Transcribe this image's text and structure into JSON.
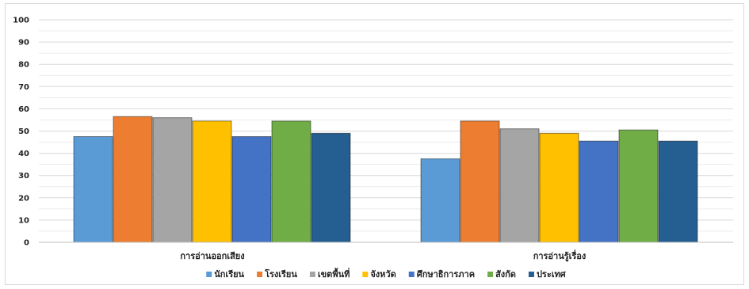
{
  "chart_data": {
    "type": "bar",
    "title": "",
    "xlabel": "",
    "ylabel": "",
    "ylim": [
      0,
      100
    ],
    "yticks": [
      0,
      10,
      20,
      30,
      40,
      50,
      60,
      70,
      80,
      90,
      100
    ],
    "grid": true,
    "legend_position": "bottom",
    "categories": [
      "การอ่านออกเสียง",
      "การอ่านรู้เรื่อง"
    ],
    "series": [
      {
        "name": "นักเรียน",
        "values": [
          47.5,
          37.5
        ],
        "color": "#5b9bd5"
      },
      {
        "name": "โรงเรียน",
        "values": [
          56.5,
          54.5
        ],
        "color": "#ed7d31"
      },
      {
        "name": "เขตพื้นที่",
        "values": [
          56,
          51
        ],
        "color": "#a5a5a5"
      },
      {
        "name": "จังหวัด",
        "values": [
          54.5,
          49
        ],
        "color": "#ffc000"
      },
      {
        "name": "ศึกษาธิการภาค",
        "values": [
          47.5,
          45.5
        ],
        "color": "#4472c4"
      },
      {
        "name": "สังกัด",
        "values": [
          54.5,
          50.5
        ],
        "color": "#70ad47"
      },
      {
        "name": "ประเทศ",
        "values": [
          49,
          45.5
        ],
        "color": "#255e91"
      }
    ]
  }
}
